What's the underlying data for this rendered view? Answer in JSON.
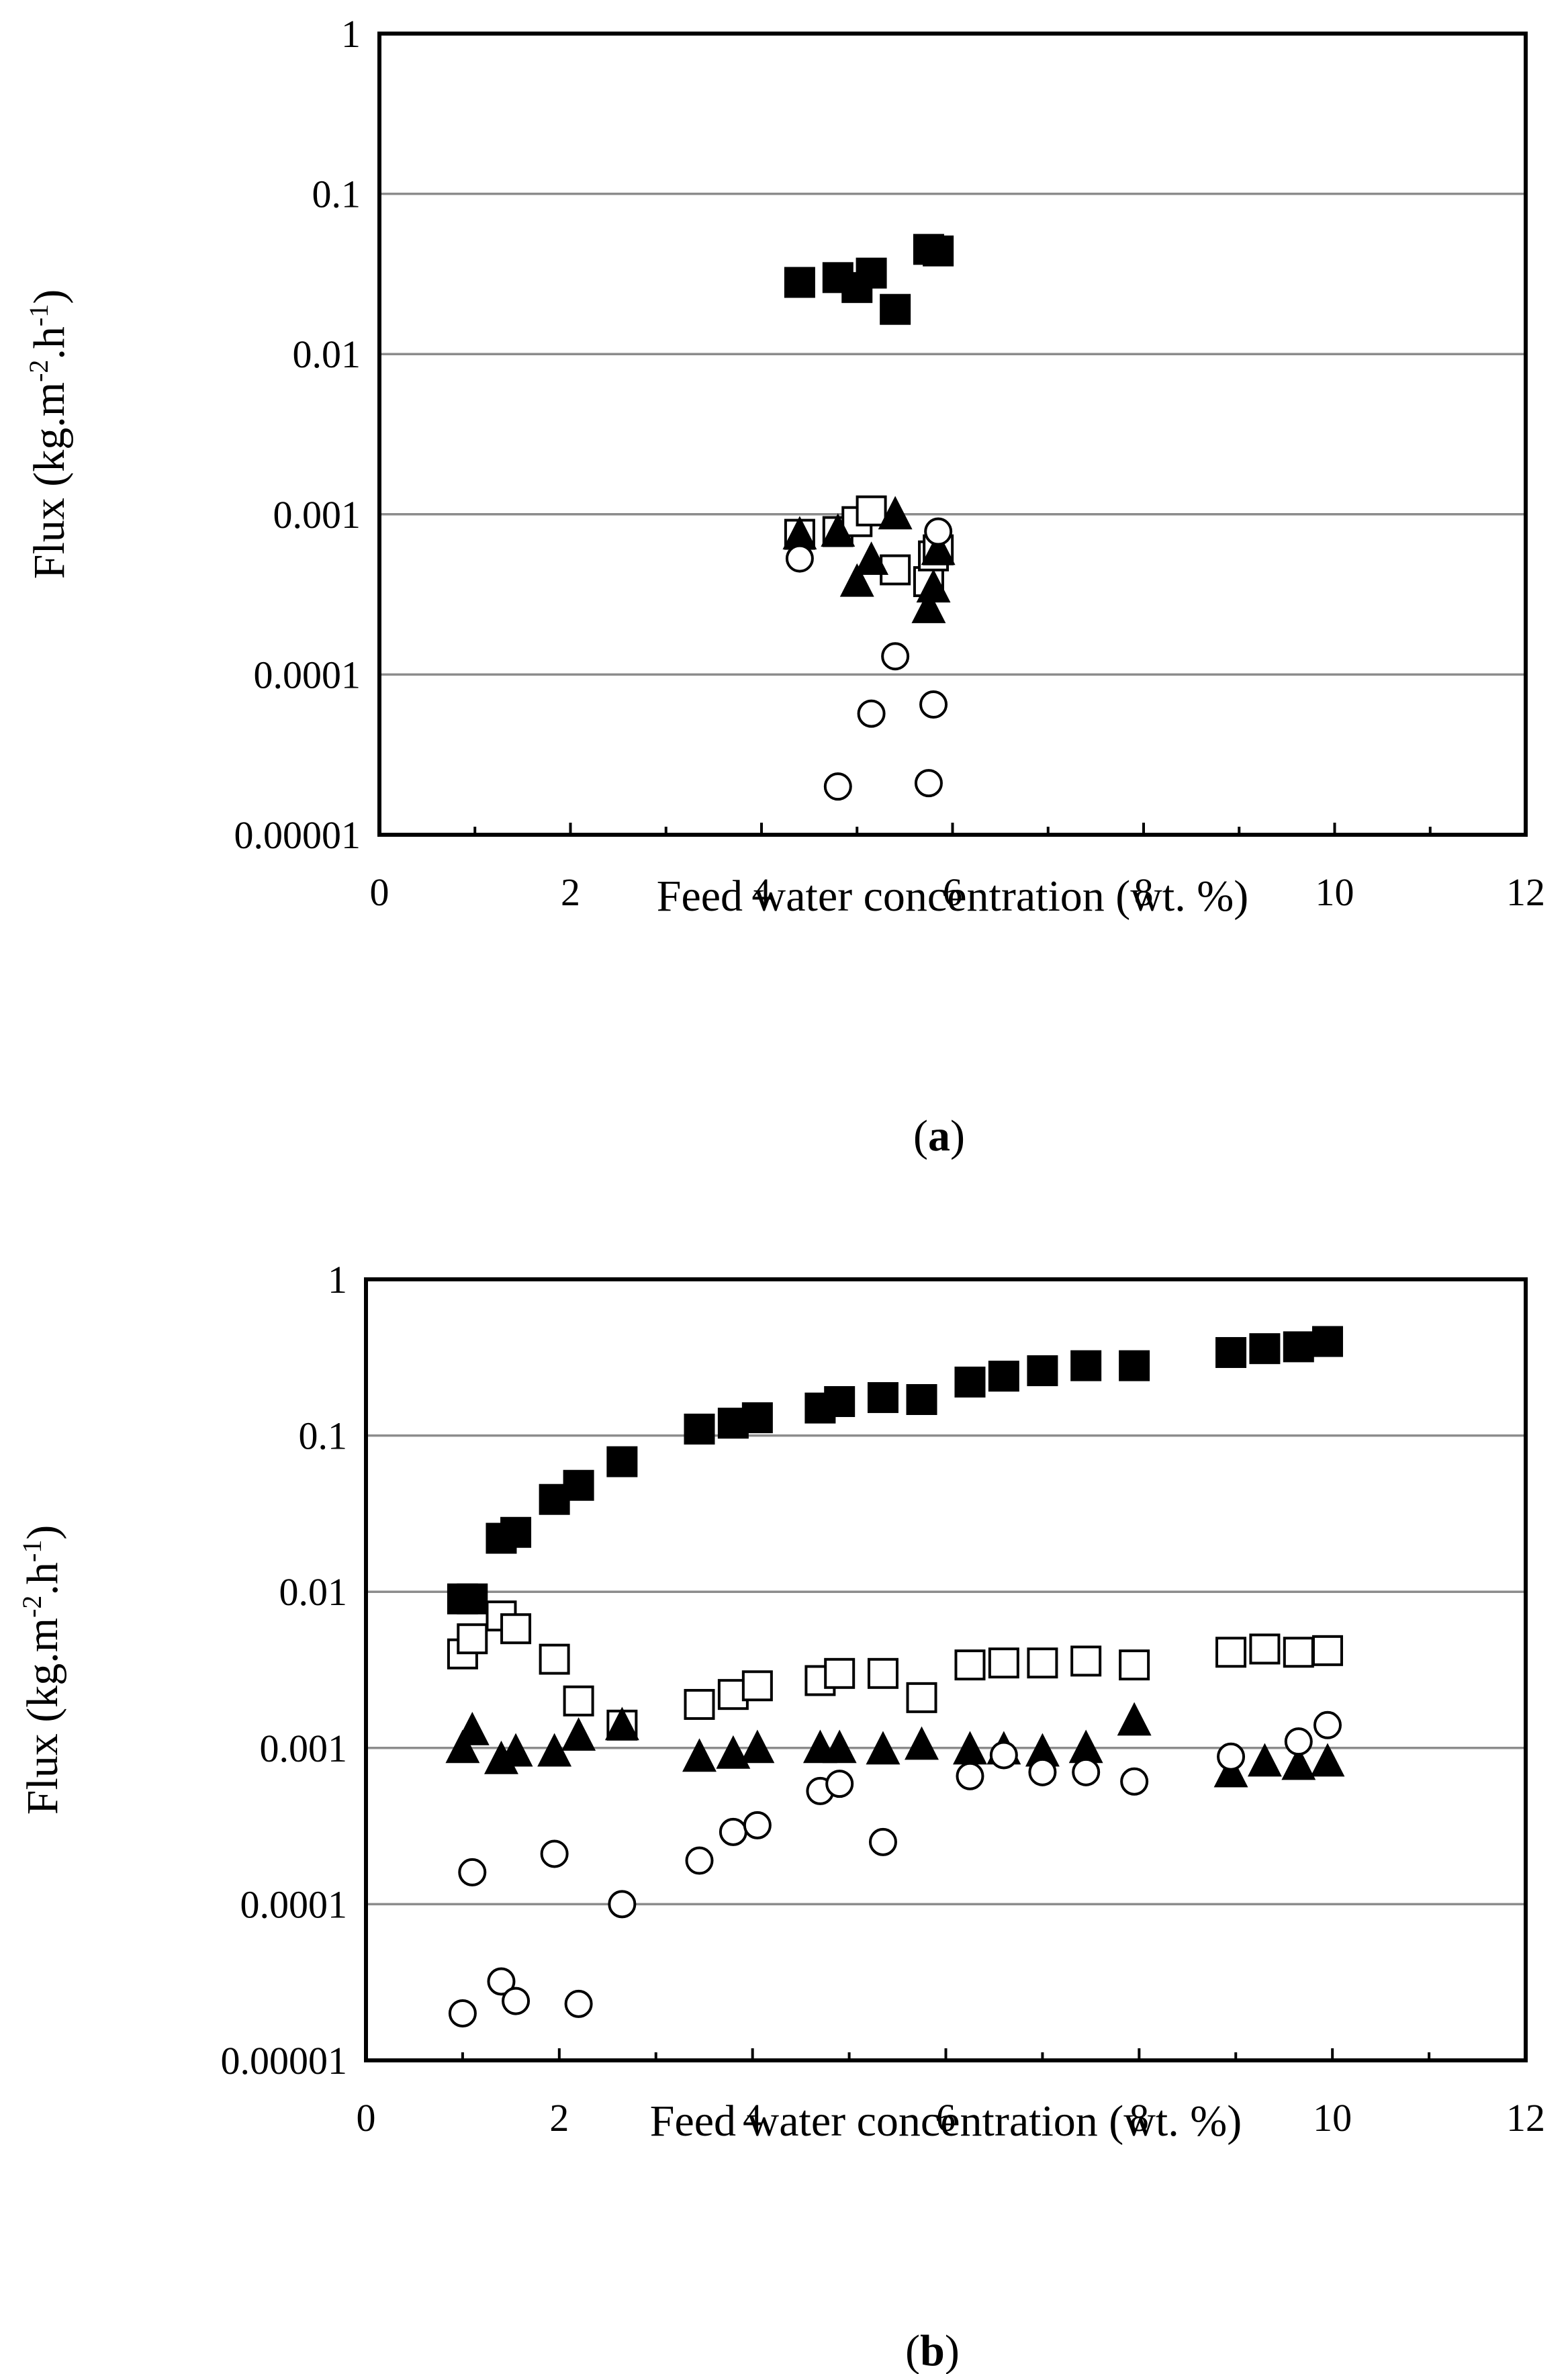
{
  "chart_data": [
    {
      "panel": "a",
      "caption_letter": "a",
      "type": "scatter",
      "yscale": "log",
      "xlabel": "Feed water concentration (wt. %)",
      "ylabel_parts": [
        "Flux (kg.m",
        "-2",
        ".h",
        "-1",
        ")"
      ],
      "xlim": [
        0,
        12
      ],
      "ylim": [
        1e-05,
        1
      ],
      "xticks": [
        0,
        2,
        4,
        6,
        8,
        10,
        12
      ],
      "xtick_labels": [
        "0",
        "2",
        "4",
        "6",
        "8",
        "10",
        "12"
      ],
      "yticks": [
        1e-05,
        0.0001,
        0.001,
        0.01,
        0.1,
        1
      ],
      "ytick_labels": [
        "0.00001",
        "0.0001",
        "0.001",
        "0.01",
        "0.1",
        "1"
      ],
      "gridlines": "horizontal",
      "series": [
        {
          "name": "filled-square",
          "marker": "square",
          "filled": true,
          "x": [
            4.4,
            4.8,
            5.0,
            5.15,
            5.4,
            5.75,
            5.85
          ],
          "y": [
            0.028,
            0.03,
            0.026,
            0.032,
            0.019,
            0.045,
            0.044
          ]
        },
        {
          "name": "open-square",
          "marker": "square",
          "filled": false,
          "x": [
            4.4,
            4.8,
            5.0,
            5.15,
            5.4,
            5.75,
            5.8,
            5.85
          ],
          "y": [
            0.00075,
            0.00078,
            0.0009,
            0.00105,
            0.00045,
            0.00038,
            0.00055,
            0.0006
          ]
        },
        {
          "name": "filled-triangle",
          "marker": "triangle",
          "filled": true,
          "x": [
            4.4,
            4.8,
            5.0,
            5.15,
            5.4,
            5.75,
            5.8,
            5.85
          ],
          "y": [
            0.00075,
            0.00078,
            0.00038,
            0.00052,
            0.001,
            0.00026,
            0.00035,
            0.0006
          ]
        },
        {
          "name": "open-circle",
          "marker": "circle",
          "filled": false,
          "x": [
            4.4,
            4.8,
            5.15,
            5.4,
            5.75,
            5.8,
            5.85
          ],
          "y": [
            0.00053,
            2e-05,
            5.7e-05,
            0.00013,
            2.1e-05,
            6.5e-05,
            0.00078
          ]
        }
      ]
    },
    {
      "panel": "b",
      "caption_letter": "b",
      "type": "scatter",
      "yscale": "log",
      "xlabel": "Feed water concentration (wt. %)",
      "ylabel_parts": [
        "Flux (kg.m",
        "-2",
        ".h",
        "-1",
        ")"
      ],
      "xlim": [
        0,
        12
      ],
      "ylim": [
        1e-05,
        1
      ],
      "xticks": [
        0,
        2,
        4,
        6,
        8,
        10,
        12
      ],
      "xtick_labels": [
        "0",
        "2",
        "4",
        "6",
        "8",
        "10",
        "12"
      ],
      "yticks": [
        1e-05,
        0.0001,
        0.001,
        0.01,
        0.1,
        1
      ],
      "ytick_labels": [
        "0.00001",
        "0.0001",
        "0.001",
        "0.01",
        "0.1",
        "1"
      ],
      "gridlines": "horizontal",
      "series": [
        {
          "name": "filled-square",
          "marker": "square",
          "filled": true,
          "x": [
            1.0,
            1.1,
            1.4,
            1.55,
            1.95,
            2.2,
            2.65,
            3.45,
            3.8,
            4.05,
            4.7,
            4.9,
            5.35,
            5.75,
            6.25,
            6.6,
            7.0,
            7.45,
            7.95,
            8.95,
            9.3,
            9.65,
            9.95
          ],
          "y": [
            0.009,
            0.009,
            0.022,
            0.024,
            0.039,
            0.048,
            0.068,
            0.11,
            0.12,
            0.13,
            0.15,
            0.165,
            0.175,
            0.17,
            0.22,
            0.24,
            0.26,
            0.28,
            0.28,
            0.34,
            0.36,
            0.37,
            0.4
          ]
        },
        {
          "name": "open-square",
          "marker": "square",
          "filled": false,
          "x": [
            1.0,
            1.1,
            1.4,
            1.55,
            1.95,
            2.2,
            2.65,
            3.45,
            3.8,
            4.05,
            4.7,
            4.9,
            5.35,
            5.75,
            6.25,
            6.6,
            7.0,
            7.45,
            7.95,
            8.95,
            9.3,
            9.65,
            9.95
          ],
          "y": [
            0.004,
            0.005,
            0.007,
            0.0058,
            0.0037,
            0.002,
            0.0014,
            0.0019,
            0.0022,
            0.0025,
            0.0027,
            0.003,
            0.003,
            0.0021,
            0.0034,
            0.0035,
            0.0035,
            0.0036,
            0.0034,
            0.0041,
            0.0043,
            0.0041,
            0.0042
          ]
        },
        {
          "name": "filled-triangle",
          "marker": "triangle",
          "filled": true,
          "x": [
            1.0,
            1.1,
            1.4,
            1.55,
            1.95,
            2.2,
            2.65,
            3.45,
            3.8,
            4.05,
            4.7,
            4.9,
            5.35,
            5.75,
            6.25,
            6.6,
            7.0,
            7.45,
            7.95,
            8.95,
            9.3,
            9.65,
            9.95
          ],
          "y": [
            0.001,
            0.0013,
            0.00085,
            0.00095,
            0.00095,
            0.0012,
            0.0014,
            0.00088,
            0.00092,
            0.001,
            0.001,
            0.001,
            0.00098,
            0.00105,
            0.00098,
            0.00098,
            0.00095,
            0.001,
            0.0015,
            0.0007,
            0.00082,
            0.00078,
            0.00082
          ]
        },
        {
          "name": "open-circle",
          "marker": "circle",
          "filled": false,
          "x": [
            1.0,
            1.1,
            1.4,
            1.55,
            1.95,
            2.2,
            2.65,
            3.45,
            3.8,
            4.05,
            4.7,
            4.9,
            5.35,
            6.25,
            6.6,
            7.0,
            7.45,
            7.95,
            8.95,
            9.65,
            9.95
          ],
          "y": [
            2e-05,
            0.00016,
            3.2e-05,
            2.4e-05,
            0.00021,
            2.3e-05,
            0.0001,
            0.00019,
            0.00029,
            0.00032,
            0.00053,
            0.00059,
            0.00025,
            0.00066,
            0.0009,
            0.0007,
            0.0007,
            0.00061,
            0.00088,
            0.0011,
            0.0014
          ]
        }
      ]
    }
  ]
}
